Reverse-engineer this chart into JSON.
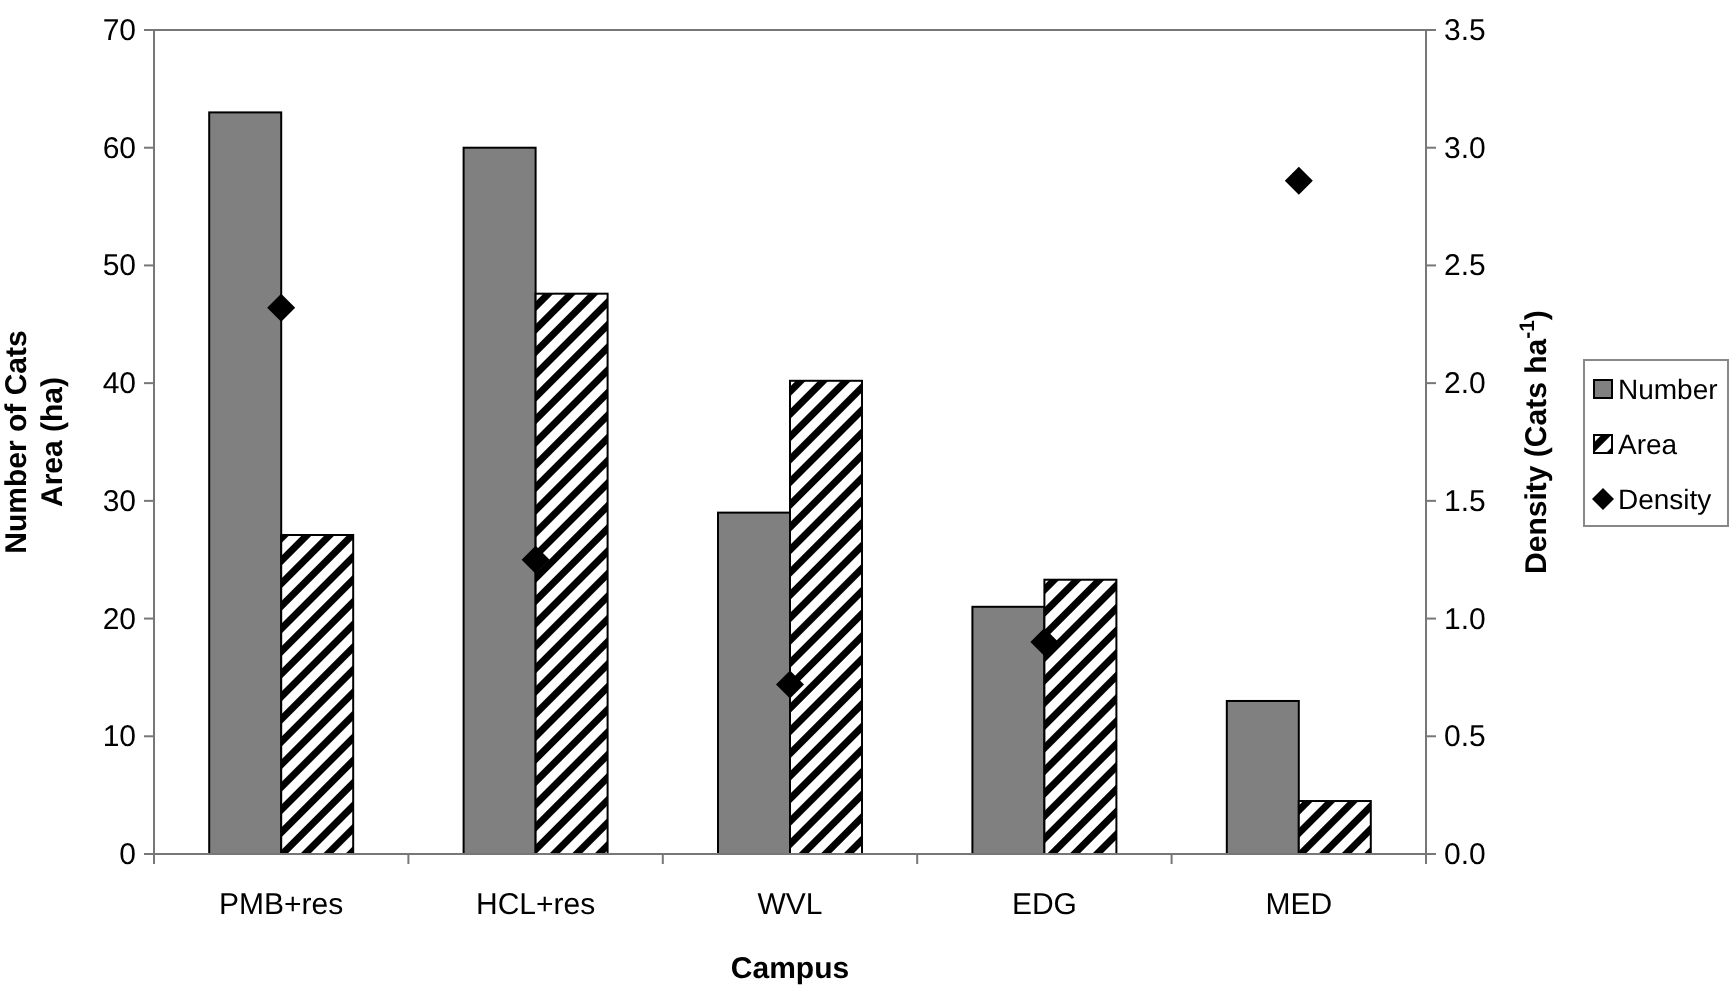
{
  "chart_data": {
    "type": "bar",
    "xlabel": "Campus",
    "ylabel": "Number of Cats\nArea (ha)",
    "y2label": "Density (Cats ha$^{-1}$)",
    "categories": [
      "PMB+res",
      "HCL+res",
      "WVL",
      "EDG",
      "MED"
    ],
    "series": [
      {
        "name": "Number",
        "color": "#808080",
        "values": [
          63,
          60,
          29,
          21,
          13
        ]
      },
      {
        "name": "Area",
        "color": "#000000",
        "values": [
          27.1,
          47.6,
          40.2,
          23.3,
          4.5
        ]
      },
      {
        "name": "Density",
        "type": "scatter",
        "axis": "y2",
        "color": "#000000",
        "marker": "diamond",
        "x": [
          "PMB+res",
          "HCL+res",
          "WVL",
          "EDG",
          "MED"
        ],
        "values": [
          2.32,
          1.25,
          0.72,
          0.9,
          2.86
        ]
      }
    ],
    "ylim": [
      0,
      70
    ],
    "yticks": [
      0,
      10,
      20,
      30,
      40,
      50,
      60,
      70
    ],
    "y2lim": [
      0,
      3.5
    ],
    "y2ticks": [
      {
        "value": 0,
        "label": "0.0"
      },
      {
        "value": 0.5,
        "label": "0.5"
      },
      {
        "value": 1,
        "label": "1.0"
      },
      {
        "value": 1.5,
        "label": "1.5"
      },
      {
        "value": 2,
        "label": "2.0"
      },
      {
        "value": 2.5,
        "label": "2.5"
      },
      {
        "value": 3,
        "label": "3.0"
      },
      {
        "value": 3.5,
        "label": "3.5"
      }
    ],
    "grid": false,
    "legend": "right"
  }
}
